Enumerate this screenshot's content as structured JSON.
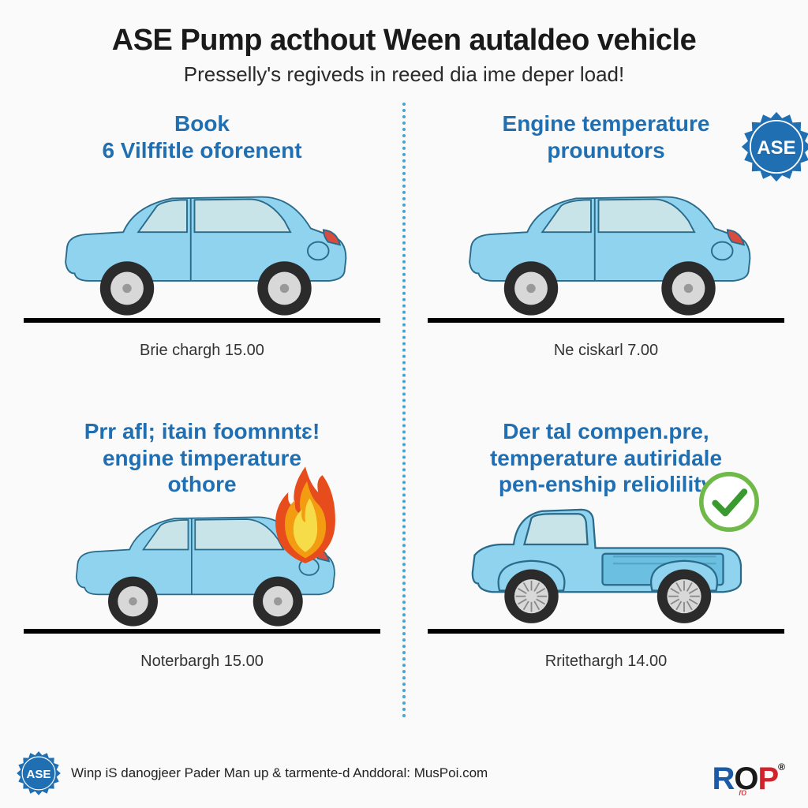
{
  "colors": {
    "accent_blue": "#1f6fb2",
    "title_black": "#111111",
    "car_body": "#8fd3ef",
    "car_body_dark": "#6bbfe0",
    "car_window": "#c8e4e8",
    "car_outline": "#2a6a8a",
    "tire_dark": "#2b2b2b",
    "tire_rim": "#d8d8d8",
    "divider": "#4aa0d0",
    "flame_outer": "#e74c1c",
    "flame_mid": "#f39c12",
    "flame_inner": "#f7dc4a",
    "check_ring": "#6fb948",
    "check_mark": "#3a9a2f",
    "rop_r": "#1b5aa6",
    "rop_o": "#1a1a1a",
    "rop_p": "#d3232a"
  },
  "header": {
    "title": "ASE Pump acthout Ween autaldeo vehicle",
    "subtitle": "Presselly's regiveds in reeed dia ime deper load!"
  },
  "cells": {
    "tl": {
      "line1": "Book",
      "line2": "6 Vilffitle oforenent",
      "caption": "Brie chargh 15.00"
    },
    "tr": {
      "line1": "Engine temperature",
      "line2": "prounutors",
      "caption": "Ne ciskarl 7.00"
    },
    "bl": {
      "line1": "Prr afl; itain foomnntɛ!",
      "line2": "engine timperature",
      "line3": "othore",
      "caption": "Noterbargh 15.00"
    },
    "br": {
      "line1": "Der tal compen.pre,",
      "line2": "temperature autiridale",
      "line3": "pen-enship reliolility",
      "caption": "Rritethargh 14.00"
    }
  },
  "badge_text": "ASE",
  "footer": {
    "text": "Winp iS danogjeer Pader Man up & tarmente-d Anddoral: MusPoi.com",
    "rop_r": "R",
    "rop_o": "O",
    "rop_p": "P"
  },
  "styles": {
    "title_fontsize": 38,
    "subtitle_fontsize": 26,
    "cell_title_fontsize": 28,
    "caption_fontsize": 20
  }
}
